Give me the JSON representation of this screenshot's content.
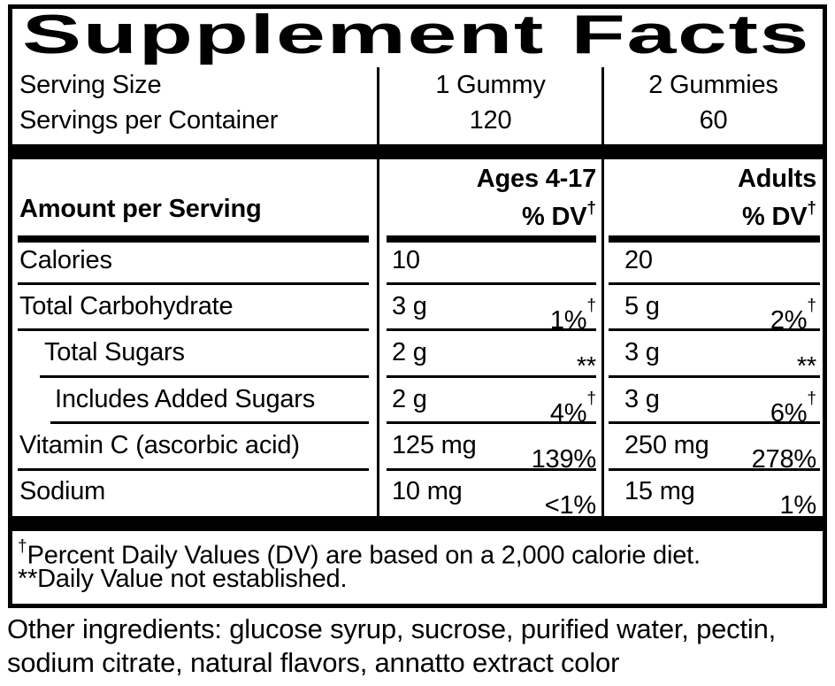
{
  "title": "Supplement Facts",
  "serving": {
    "row_labels": [
      "Serving Size",
      "Servings per Container"
    ],
    "col1": {
      "size": "1 Gummy",
      "count": "120"
    },
    "col2": {
      "size": "2 Gummies",
      "count": "60"
    }
  },
  "header": {
    "amount": "Amount per Serving",
    "ages_group": "Ages 4-17",
    "adults_group": "Adults",
    "dv": "% DV",
    "dagger": "†"
  },
  "rows": [
    {
      "label": "Calories",
      "a1": "10",
      "d1": "",
      "g1": "",
      "a2": "20",
      "d2": "",
      "g2": ""
    },
    {
      "label": "Total Carbohydrate",
      "a1": "3 g",
      "d1": "1%",
      "g1": "†",
      "a2": "5 g",
      "d2": "2%",
      "g2": "†"
    },
    {
      "label": "Total Sugars",
      "a1": "2 g",
      "d1": "**",
      "g1": "",
      "a2": "3 g",
      "d2": "**",
      "g2": ""
    },
    {
      "label": "Includes Added Sugars",
      "a1": "2 g",
      "d1": "4%",
      "g1": "†",
      "a2": "3 g",
      "d2": "6%",
      "g2": "†"
    },
    {
      "label": "Vitamin C (ascorbic acid)",
      "a1": "125 mg",
      "d1": "139%",
      "g1": "",
      "a2": "250 mg",
      "d2": "278%",
      "g2": ""
    },
    {
      "label": "Sodium",
      "a1": "10 mg",
      "d1": "<1%",
      "g1": "",
      "a2": "15 mg",
      "d2": "1%",
      "g2": ""
    }
  ],
  "footnotes": {
    "dagger": "†",
    "line1": "Percent Daily Values (DV) are based on a 2,000 calorie diet.",
    "line2": "**Daily Value not established."
  },
  "ingredients": {
    "line1": "Other ingredients: glucose syrup, sucrose, purified water, pectin,",
    "line2": "sodium citrate, natural flavors, annatto extract color"
  },
  "colors": {
    "ink": "#000000",
    "background": "#ffffff"
  }
}
